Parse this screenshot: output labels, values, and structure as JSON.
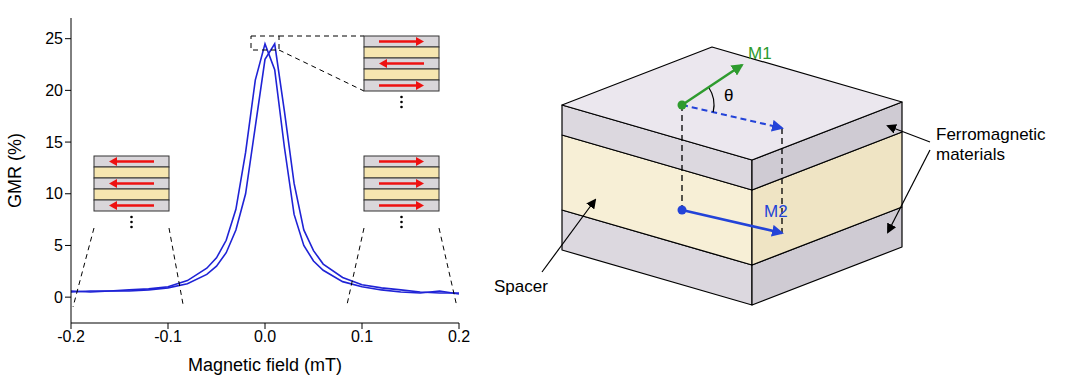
{
  "chart_data": {
    "type": "line",
    "x_label": "Magnetic field (mT)",
    "y_label": "GMR (%)",
    "xlim": [
      -0.2,
      0.2
    ],
    "xticks": [
      -0.2,
      -0.1,
      {
        "value": 0,
        "label": "0.0"
      },
      0.1,
      0.2
    ],
    "ylim": [
      -2.5,
      27
    ],
    "yticks": [
      0,
      5,
      10,
      15,
      20,
      25
    ],
    "grid": false,
    "x": [
      -0.2,
      -0.18,
      -0.16,
      -0.14,
      -0.12,
      -0.1,
      -0.08,
      -0.06,
      -0.05,
      -0.04,
      -0.03,
      -0.02,
      -0.01,
      0,
      0.01,
      0.02,
      0.03,
      0.04,
      0.05,
      0.06,
      0.08,
      0.1,
      0.12,
      0.14,
      0.16,
      0.18,
      0.2
    ],
    "series": [
      {
        "color": "#1f23d6",
        "values": [
          0.5,
          0.6,
          0.6,
          0.7,
          0.8,
          1.0,
          1.6,
          2.8,
          3.8,
          5.5,
          8.5,
          14,
          21,
          24.5,
          22,
          14.5,
          8,
          5,
          3.5,
          2.6,
          1.5,
          1.0,
          0.7,
          0.5,
          0.4,
          0.6,
          0.3
        ]
      },
      {
        "color": "#1f23d6",
        "values": [
          0.6,
          0.5,
          0.6,
          0.6,
          0.7,
          0.9,
          1.3,
          2.2,
          3.0,
          4.3,
          6.5,
          10,
          16.5,
          23,
          24.5,
          18,
          11,
          6.5,
          4.5,
          3.2,
          1.9,
          1.2,
          0.9,
          0.7,
          0.5,
          0.4,
          0.4
        ]
      }
    ]
  },
  "diagram": {
    "vectors": [
      {
        "label": "M1",
        "color": "#2e9b2e"
      },
      {
        "label": "M2",
        "color": "#2343d8"
      }
    ],
    "angle": "θ",
    "spacer": "Spacer",
    "layers": "Ferromagnetic materials"
  }
}
